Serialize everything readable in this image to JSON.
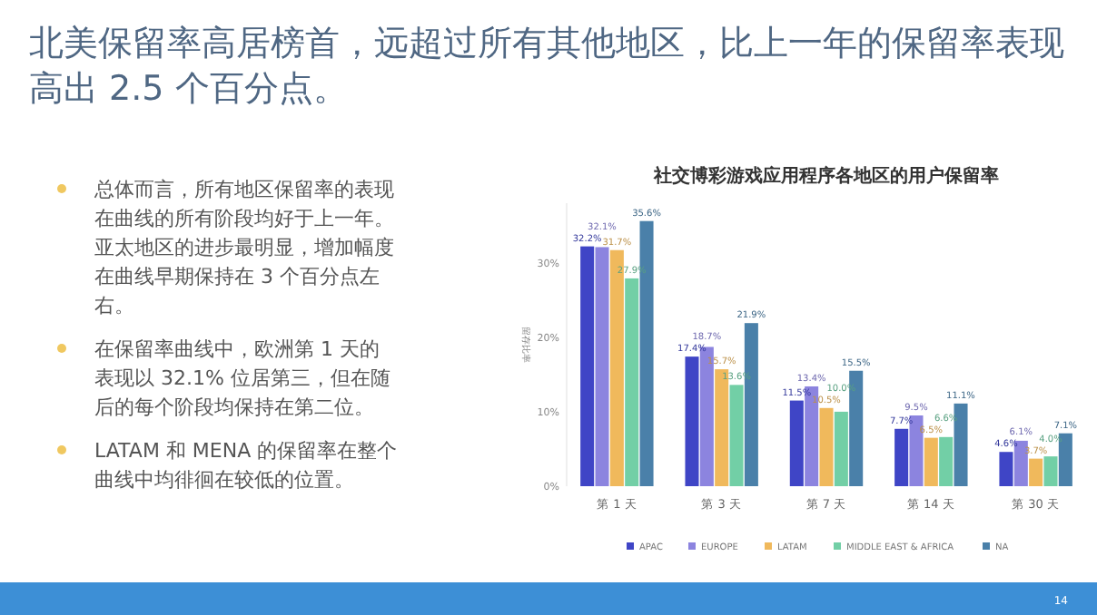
{
  "chart_data": {
    "type": "bar",
    "title": "社交博彩游戏应用程序各地区的用户保留率",
    "ylabel": "留存比率",
    "categories": [
      "第 1 天",
      "第 3 天",
      "第 7 天",
      "第 14 天",
      "第 30 天"
    ],
    "series": [
      {
        "name": "APAC",
        "color": "#3f45c6",
        "values": [
          32.2,
          17.4,
          11.5,
          7.7,
          4.6
        ],
        "value_labels": [
          "32.2%",
          "17.4%",
          "11.5%",
          "7.7%",
          "4.6%"
        ]
      },
      {
        "name": "EUROPE",
        "color": "#8c84df",
        "values": [
          32.1,
          18.7,
          13.4,
          9.5,
          6.1
        ],
        "value_labels": [
          "32.1%",
          "18.7%",
          "13.4%",
          "9.5%",
          "6.1%"
        ]
      },
      {
        "name": "LATAM",
        "color": "#f0b95c",
        "values": [
          31.7,
          15.7,
          10.5,
          6.5,
          3.7
        ],
        "value_labels": [
          "31.7%",
          "15.7%",
          "10.5%",
          "6.5%",
          "3.7%"
        ]
      },
      {
        "name": "MIDDLE EAST & AFRICA",
        "color": "#72cfa6",
        "values": [
          27.9,
          13.6,
          10.0,
          6.6,
          4.0
        ],
        "value_labels": [
          "27.9%",
          "13.6%",
          "10.0%",
          "6.6%",
          "4.0%"
        ]
      },
      {
        "name": "NA",
        "color": "#4a80a9",
        "values": [
          35.6,
          21.9,
          15.5,
          11.1,
          7.1
        ],
        "value_labels": [
          "35.6%",
          "21.9%",
          "15.5%",
          "11.1%",
          "7.1%"
        ]
      }
    ],
    "ylim": [
      0,
      38
    ],
    "yticks": [
      {
        "value": 0,
        "label": "0%"
      },
      {
        "value": 10,
        "label": "10%"
      },
      {
        "value": 20,
        "label": "20%"
      },
      {
        "value": 30,
        "label": "30%"
      }
    ],
    "grid": false,
    "legend": "bottom",
    "annotations": [
      "北美保留率高居榜首，远超过所有其他地区，比上一年的保留率表现高出 2.5 个百分点。",
      "总体而言，所有地区保留率的表现在曲线的所有阶段均好于上一年。亚太地区的进步最明显，增加幅度在曲线早期保持在 3 个百分点左右。",
      "在保留率曲线中，欧洲第 1 天的表现以 32.1% 位居第三，但在随后的每个阶段均保持在第二位。",
      "LATAM 和 MENA 的保留率在整个曲线中均徘徊在较低的位置。",
      "14"
    ]
  }
}
